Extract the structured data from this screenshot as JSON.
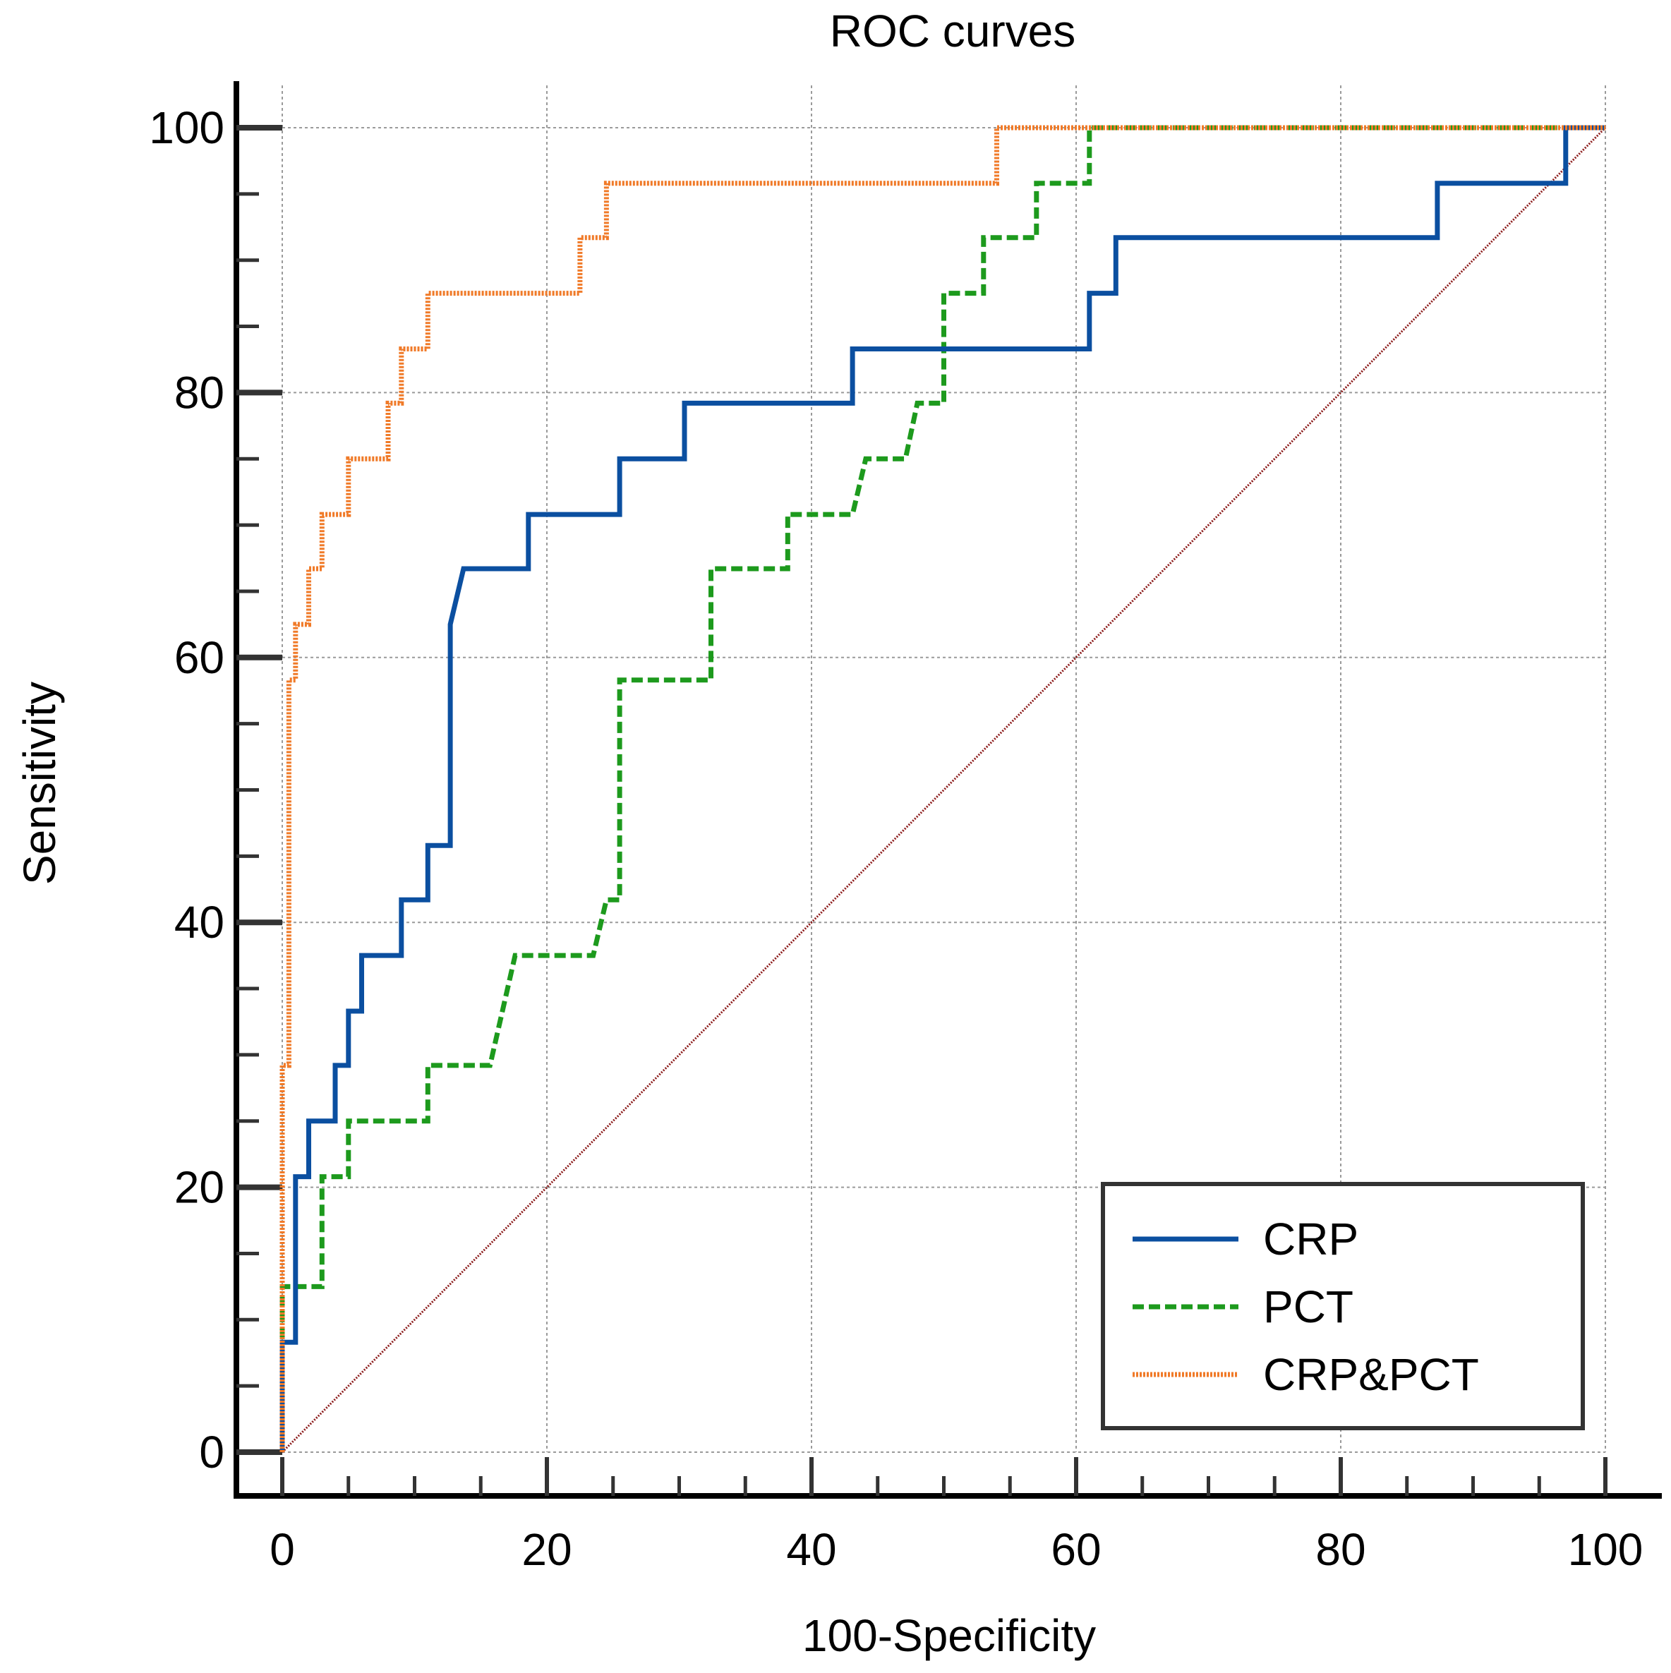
{
  "chart_data": {
    "type": "line",
    "title": "ROC curves",
    "xlabel": "100-Specificity",
    "ylabel": "Sensitivity",
    "xlim": [
      0,
      100
    ],
    "ylim": [
      0,
      100
    ],
    "xticks": [
      0,
      20,
      40,
      60,
      80,
      100
    ],
    "yticks": [
      0,
      20,
      40,
      60,
      80,
      100
    ],
    "grid": true,
    "legend_position": "bottom-right",
    "series": [
      {
        "name": "CRP",
        "color": "#0b4fa0",
        "style": "solid",
        "x": [
          0,
          0,
          1,
          1,
          2,
          2,
          4,
          4,
          5,
          5,
          6,
          6,
          9,
          9,
          11,
          11,
          12.7,
          12.7,
          13.7,
          18.6,
          18.6,
          25.5,
          25.5,
          30.4,
          30.4,
          43.1,
          43.1,
          61,
          61,
          63,
          63,
          87.3,
          87.3,
          97,
          97,
          100
        ],
        "y": [
          0,
          8.3,
          8.3,
          20.8,
          20.8,
          25,
          25,
          29.2,
          29.2,
          33.3,
          33.3,
          37.5,
          37.5,
          41.7,
          41.7,
          45.8,
          45.8,
          62.5,
          66.7,
          66.7,
          70.8,
          70.8,
          75,
          75,
          79.2,
          79.2,
          83.3,
          83.3,
          87.5,
          87.5,
          91.7,
          91.7,
          95.8,
          95.8,
          100,
          100
        ]
      },
      {
        "name": "PCT",
        "color": "#1d9a1d",
        "style": "dashed",
        "x": [
          0,
          0,
          3,
          3,
          5,
          5,
          11,
          11,
          15.7,
          17.6,
          23.5,
          24.5,
          25.5,
          25.5,
          32.4,
          32.4,
          38.2,
          38.2,
          43.1,
          44.1,
          47.1,
          48,
          50,
          50,
          53,
          53,
          57,
          57,
          61,
          61,
          100
        ],
        "y": [
          0,
          12.5,
          12.5,
          20.8,
          20.8,
          25,
          25,
          29.2,
          29.2,
          37.5,
          37.5,
          41.7,
          41.7,
          58.3,
          58.3,
          66.7,
          66.7,
          70.8,
          70.8,
          75,
          75,
          79.2,
          79.2,
          87.5,
          87.5,
          91.7,
          91.7,
          95.8,
          95.8,
          100,
          100
        ]
      },
      {
        "name": "CRP&PCT",
        "color": "#f07a28",
        "style": "dotted",
        "x": [
          0,
          0,
          0.5,
          0.5,
          1,
          1,
          2,
          2,
          3,
          3,
          5,
          5,
          8,
          8,
          9,
          9,
          11,
          11,
          13,
          13,
          22.5,
          22.5,
          24.5,
          24.5,
          54,
          54,
          100
        ],
        "y": [
          0,
          29.2,
          29.2,
          58.3,
          58.3,
          62.5,
          62.5,
          66.7,
          66.7,
          70.8,
          70.8,
          75,
          75,
          79.2,
          79.2,
          83.3,
          83.3,
          87.5,
          87.5,
          87.5,
          87.5,
          91.7,
          91.7,
          95.8,
          95.8,
          100,
          100
        ]
      }
    ],
    "reference_line": {
      "x": [
        0,
        100
      ],
      "y": [
        0,
        100
      ],
      "color": "#8b1a1a"
    }
  }
}
